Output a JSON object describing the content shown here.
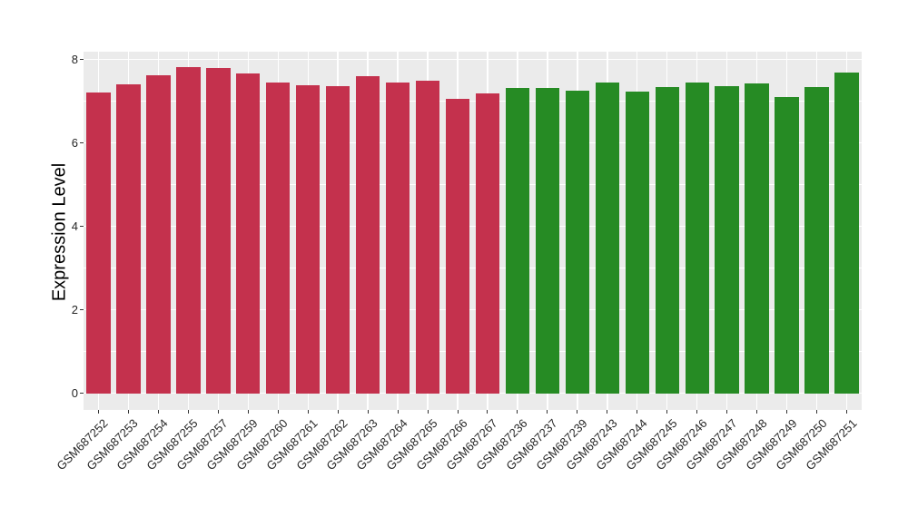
{
  "figure": {
    "background": "#FFFFFF",
    "panel_background": "#EBEBEB",
    "gridline_color": "#FFFFFF",
    "tick_color": "#333333",
    "tick_label_color": "#262626",
    "axis_title_color": "#000000"
  },
  "chart_data": {
    "type": "bar",
    "title": "",
    "xlabel": "",
    "ylabel": "Expression Level",
    "ylim": [
      0,
      8.2
    ],
    "yticks": [
      0,
      2,
      4,
      6,
      8
    ],
    "yticks_minor": [
      1,
      3,
      5,
      7
    ],
    "grid": "major and minor horizontal white gridlines, major vertical gridlines at category centers",
    "legend": "none",
    "groups": [
      {
        "name": "group1",
        "color": "#C4314D"
      },
      {
        "name": "group2",
        "color": "#268B24"
      }
    ],
    "bars": [
      {
        "label": "GSM687252",
        "value": 7.22,
        "group": "group1"
      },
      {
        "label": "GSM687253",
        "value": 7.4,
        "group": "group1"
      },
      {
        "label": "GSM687254",
        "value": 7.62,
        "group": "group1"
      },
      {
        "label": "GSM687255",
        "value": 7.81,
        "group": "group1"
      },
      {
        "label": "GSM687257",
        "value": 7.79,
        "group": "group1"
      },
      {
        "label": "GSM687259",
        "value": 7.67,
        "group": "group1"
      },
      {
        "label": "GSM687260",
        "value": 7.44,
        "group": "group1"
      },
      {
        "label": "GSM687261",
        "value": 7.38,
        "group": "group1"
      },
      {
        "label": "GSM687262",
        "value": 7.37,
        "group": "group1"
      },
      {
        "label": "GSM687263",
        "value": 7.6,
        "group": "group1"
      },
      {
        "label": "GSM687264",
        "value": 7.46,
        "group": "group1"
      },
      {
        "label": "GSM687265",
        "value": 7.49,
        "group": "group1"
      },
      {
        "label": "GSM687266",
        "value": 7.05,
        "group": "group1"
      },
      {
        "label": "GSM687267",
        "value": 7.2,
        "group": "group1"
      },
      {
        "label": "GSM687236",
        "value": 7.32,
        "group": "group2"
      },
      {
        "label": "GSM687237",
        "value": 7.31,
        "group": "group2"
      },
      {
        "label": "GSM687239",
        "value": 7.26,
        "group": "group2"
      },
      {
        "label": "GSM687243",
        "value": 7.44,
        "group": "group2"
      },
      {
        "label": "GSM687244",
        "value": 7.24,
        "group": "group2"
      },
      {
        "label": "GSM687245",
        "value": 7.34,
        "group": "group2"
      },
      {
        "label": "GSM687246",
        "value": 7.44,
        "group": "group2"
      },
      {
        "label": "GSM687247",
        "value": 7.36,
        "group": "group2"
      },
      {
        "label": "GSM687248",
        "value": 7.42,
        "group": "group2"
      },
      {
        "label": "GSM687249",
        "value": 7.1,
        "group": "group2"
      },
      {
        "label": "GSM687250",
        "value": 7.34,
        "group": "group2"
      },
      {
        "label": "GSM687251",
        "value": 7.68,
        "group": "group2"
      }
    ]
  }
}
